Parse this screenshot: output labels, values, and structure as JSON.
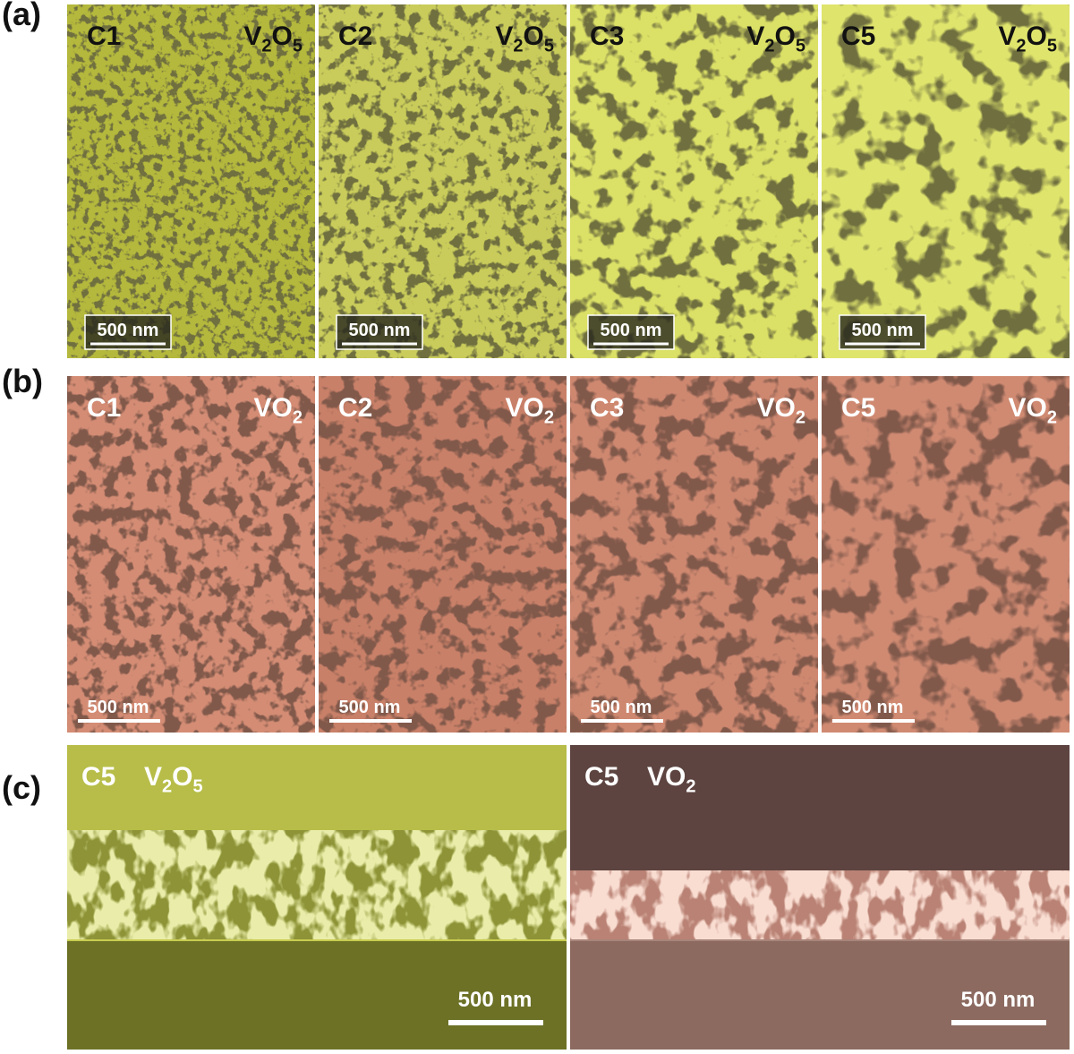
{
  "panels": [
    {
      "label": "(a)",
      "images": [
        {
          "sample": "C1",
          "formula": [
            "V",
            "2",
            "O",
            "5"
          ],
          "scale_bar": "500 nm"
        },
        {
          "sample": "C2",
          "formula": [
            "V",
            "2",
            "O",
            "5"
          ],
          "scale_bar": "500 nm"
        },
        {
          "sample": "C3",
          "formula": [
            "V",
            "2",
            "O",
            "5"
          ],
          "scale_bar": "500 nm"
        },
        {
          "sample": "C5",
          "formula": [
            "V",
            "2",
            "O",
            "5"
          ],
          "scale_bar": "500 nm"
        }
      ]
    },
    {
      "label": "(b)",
      "images": [
        {
          "sample": "C1",
          "formula": [
            "VO",
            "2"
          ],
          "scale_bar": "500 nm"
        },
        {
          "sample": "C2",
          "formula": [
            "VO",
            "2"
          ],
          "scale_bar": "500 nm"
        },
        {
          "sample": "C3",
          "formula": [
            "VO",
            "2"
          ],
          "scale_bar": "500 nm"
        },
        {
          "sample": "C5",
          "formula": [
            "VO",
            "2"
          ],
          "scale_bar": "500 nm"
        }
      ]
    },
    {
      "label": "(c)",
      "images": [
        {
          "sample": "C5",
          "formula": [
            "V",
            "2",
            "O",
            "5"
          ],
          "scale_bar": "500 nm"
        },
        {
          "sample": "C5",
          "formula": [
            "VO",
            "2"
          ],
          "scale_bar": "500 nm"
        }
      ]
    }
  ]
}
